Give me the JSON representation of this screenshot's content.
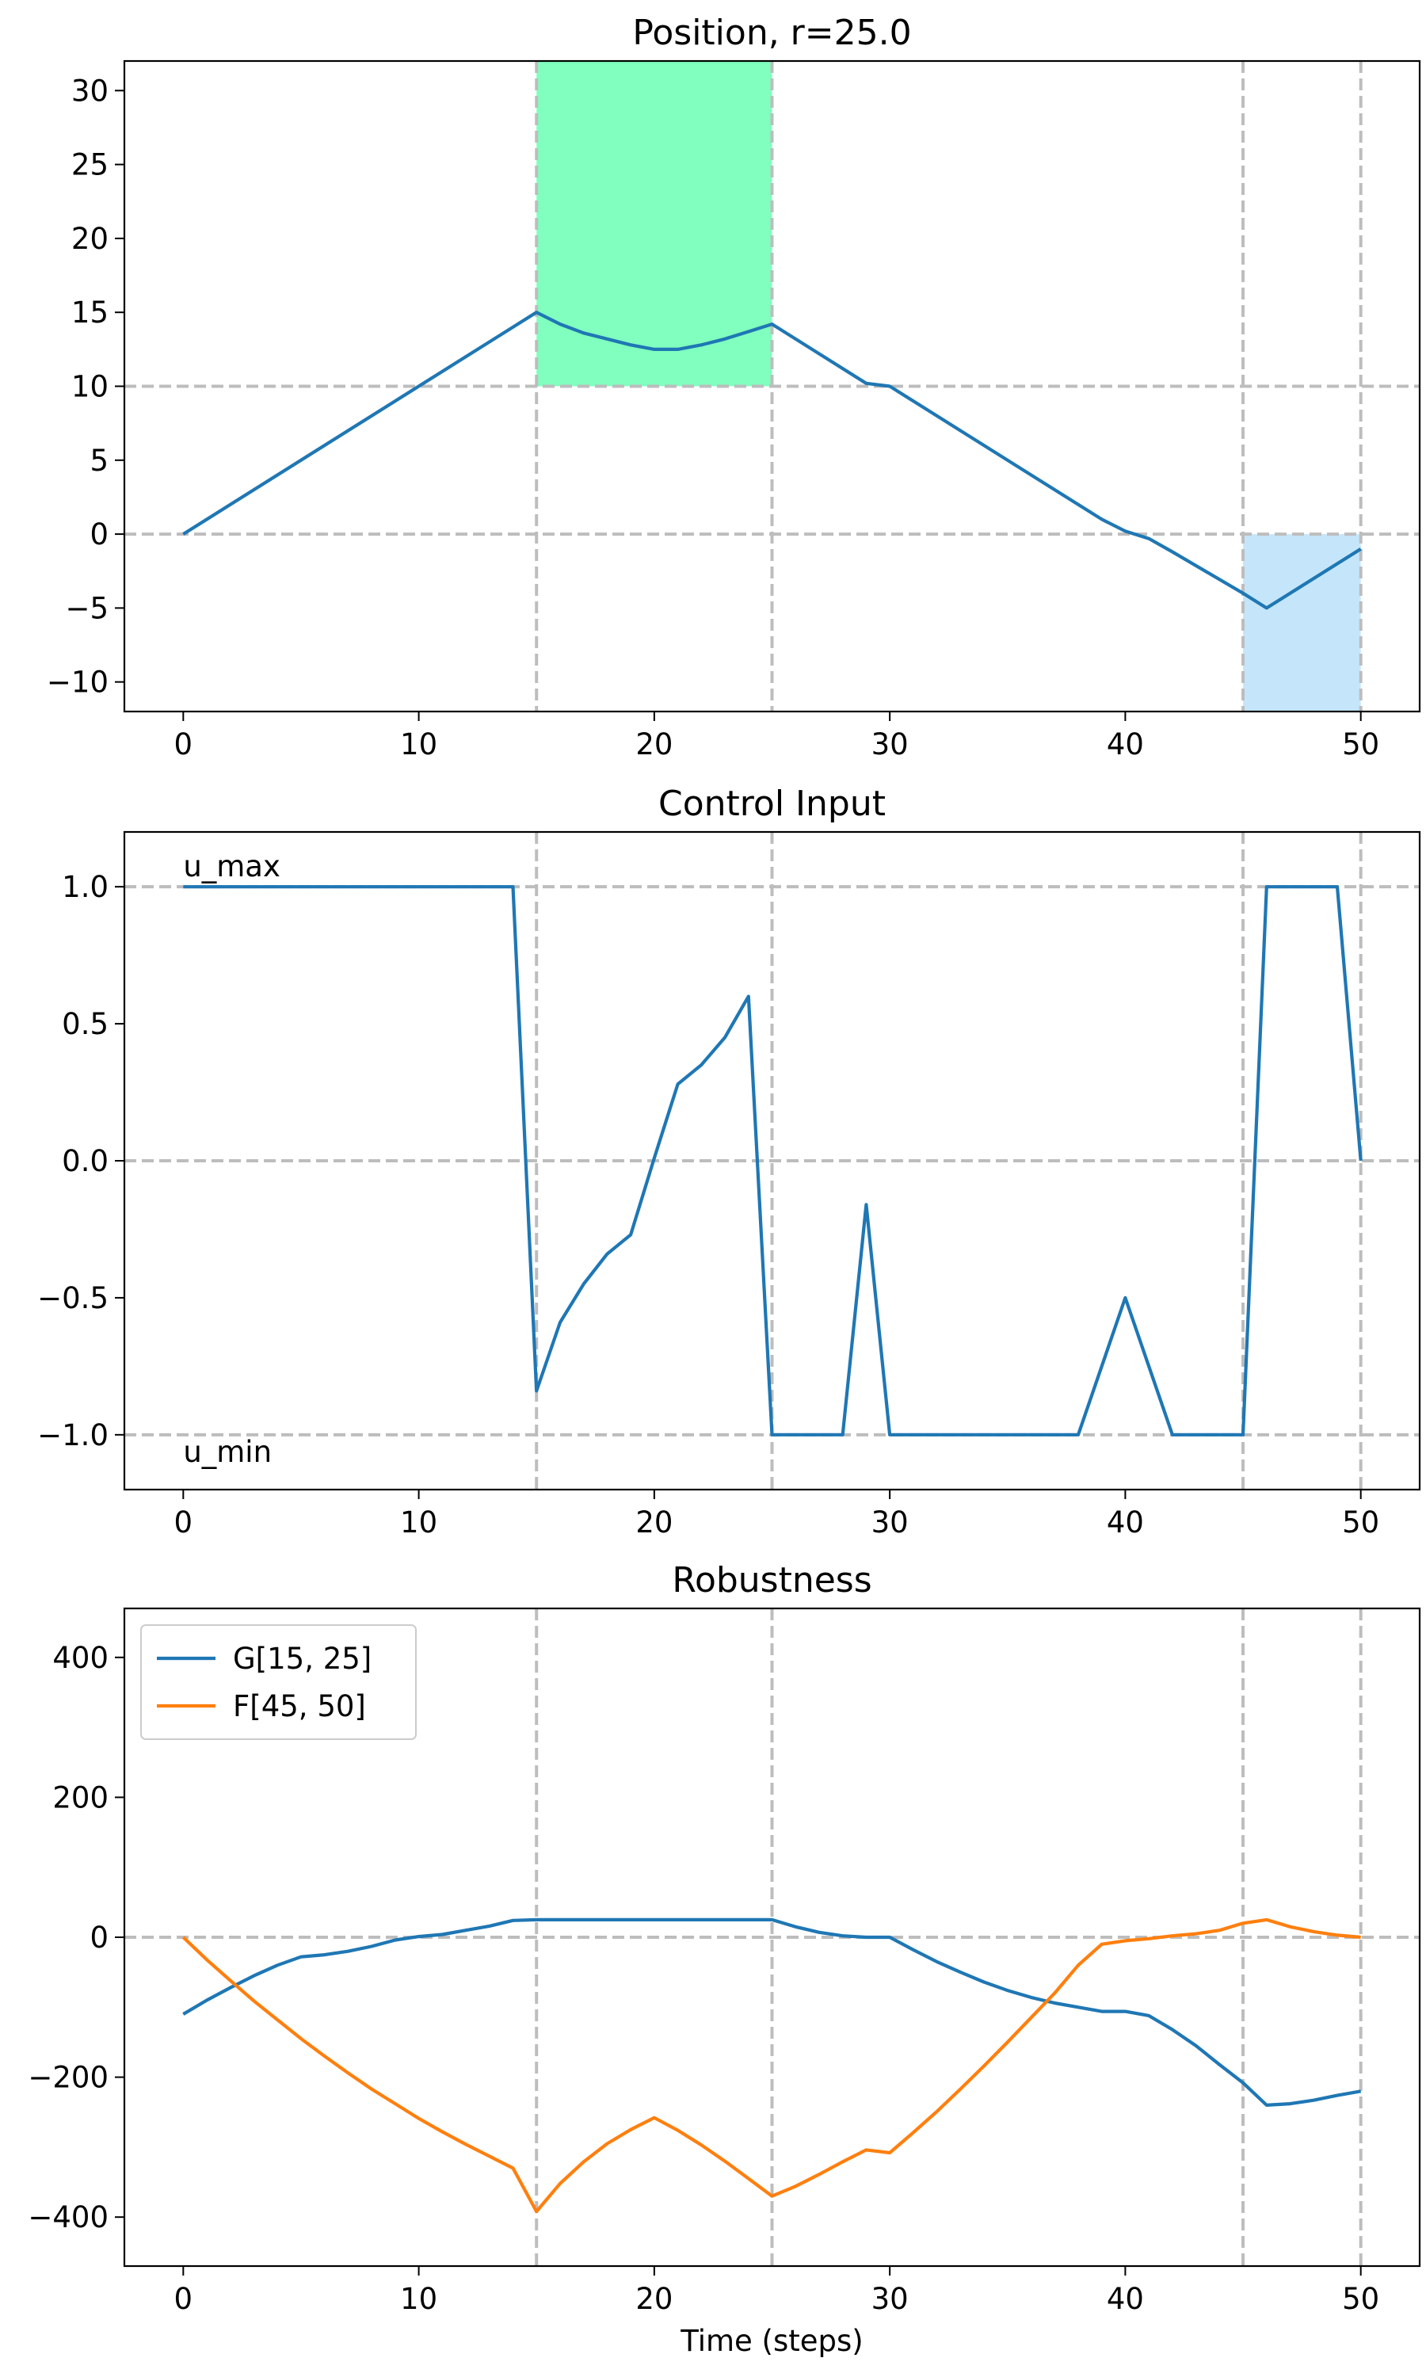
{
  "chart_data": [
    {
      "type": "line",
      "title": "Position, r=25.0",
      "xlabel": "",
      "ylabel": "",
      "xlim": [
        -2.5,
        52.5
      ],
      "ylim": [
        -12,
        32
      ],
      "xticks": [
        0,
        10,
        20,
        30,
        40,
        50
      ],
      "xtick_labels": [
        "0",
        "10",
        "20",
        "30",
        "40",
        "50"
      ],
      "yticks": [
        -10,
        -5,
        0,
        5,
        10,
        15,
        20,
        25,
        30
      ],
      "ytick_labels": [
        "−10",
        "−5",
        "0",
        "5",
        "10",
        "15",
        "20",
        "25",
        "30"
      ],
      "grid": false,
      "reference_lines": {
        "vertical": [
          15,
          25,
          45,
          50
        ],
        "horizontal": [
          10,
          0
        ]
      },
      "shaded_regions": [
        {
          "x": [
            15,
            25
          ],
          "y": [
            10,
            32
          ],
          "color": "#80ffbf"
        },
        {
          "x": [
            45,
            50
          ],
          "y": [
            -12,
            0
          ],
          "color": "#c5e6fa"
        }
      ],
      "series": [
        {
          "color": "#1f77b4",
          "x": [
            0,
            15,
            16,
            17,
            18,
            19,
            20,
            21,
            22,
            23,
            24,
            25,
            29,
            30,
            39,
            40,
            41,
            42,
            45,
            46,
            50
          ],
          "y": [
            0,
            15,
            14.2,
            13.6,
            13.2,
            12.8,
            12.5,
            12.5,
            12.8,
            13.2,
            13.7,
            14.2,
            10.2,
            10,
            1,
            0.2,
            -0.3,
            -1.2,
            -4,
            -5,
            -1
          ]
        }
      ]
    },
    {
      "type": "line",
      "title": "Control Input",
      "xlabel": "",
      "ylabel": "",
      "xlim": [
        -2.5,
        52.5
      ],
      "ylim": [
        -1.2,
        1.2
      ],
      "xticks": [
        0,
        10,
        20,
        30,
        40,
        50
      ],
      "xtick_labels": [
        "0",
        "10",
        "20",
        "30",
        "40",
        "50"
      ],
      "yticks": [
        -1.0,
        -0.5,
        0.0,
        0.5,
        1.0
      ],
      "ytick_labels": [
        "−1.0",
        "−0.5",
        "0.0",
        "0.5",
        "1.0"
      ],
      "grid": false,
      "reference_lines": {
        "vertical": [
          15,
          25,
          45,
          50
        ],
        "horizontal": [
          1,
          0,
          -1
        ]
      },
      "annotations": [
        {
          "text": "u_max",
          "x": 0,
          "y": 1.0
        },
        {
          "text": "u_min",
          "x": 0,
          "y": -1.0
        }
      ],
      "series": [
        {
          "color": "#1f77b4",
          "x": [
            0,
            14,
            15,
            16,
            17,
            18,
            19,
            20,
            21,
            22,
            23,
            24,
            25,
            26,
            27,
            28,
            29,
            30,
            38,
            40,
            42,
            45,
            46,
            49,
            50
          ],
          "y": [
            1,
            1,
            -0.84,
            -0.59,
            -0.45,
            -0.34,
            -0.27,
            0.01,
            0.28,
            0.35,
            0.45,
            0.6,
            -1,
            -1,
            -1,
            -1,
            -0.16,
            -1,
            -1,
            -0.5,
            -1,
            -1,
            1,
            1,
            0
          ]
        }
      ]
    },
    {
      "type": "line",
      "title": "Robustness",
      "xlabel": "Time (steps)",
      "ylabel": "",
      "xlim": [
        -2.5,
        52.5
      ],
      "ylim": [
        -470,
        470
      ],
      "xticks": [
        0,
        10,
        20,
        30,
        40,
        50
      ],
      "xtick_labels": [
        "0",
        "10",
        "20",
        "30",
        "40",
        "50"
      ],
      "yticks": [
        -400,
        -200,
        0,
        200,
        400
      ],
      "ytick_labels": [
        "−400",
        "−200",
        "0",
        "200",
        "400"
      ],
      "grid": false,
      "legend": "top-left",
      "reference_lines": {
        "vertical": [
          15,
          25,
          45,
          50
        ],
        "horizontal": [
          0
        ]
      },
      "series": [
        {
          "name": "G[15, 25]",
          "color": "#1f77b4",
          "x": [
            0,
            1,
            2,
            3,
            4,
            5,
            6,
            7,
            8,
            9,
            10,
            11,
            12,
            13,
            14,
            15,
            25,
            26,
            27,
            28,
            29,
            30,
            31,
            32,
            33,
            34,
            35,
            36,
            37,
            38,
            39,
            40,
            41,
            42,
            43,
            44,
            45,
            46,
            47,
            48,
            49,
            50
          ],
          "y": [
            -110,
            -90,
            -72,
            -55,
            -40,
            -28,
            -25,
            -20,
            -13,
            -4,
            1,
            4,
            10,
            16,
            24,
            25,
            25,
            15,
            7,
            2,
            0,
            0,
            -18,
            -35,
            -50,
            -64,
            -76,
            -86,
            -94,
            -100,
            -106,
            -106,
            -112,
            -132,
            -155,
            -182,
            -208,
            -240,
            -238,
            -233,
            -226,
            -220
          ]
        },
        {
          "name": "F[45, 50]",
          "color": "#ff7f0e",
          "x": [
            0,
            1,
            2,
            3,
            4,
            5,
            6,
            7,
            8,
            9,
            10,
            11,
            12,
            13,
            14,
            15,
            16,
            17,
            18,
            19,
            20,
            21,
            22,
            23,
            24,
            25,
            26,
            27,
            28,
            29,
            30,
            31,
            32,
            33,
            34,
            35,
            36,
            37,
            38,
            39,
            40,
            41,
            42,
            43,
            44,
            45,
            46,
            47,
            48,
            49,
            50
          ],
          "y": [
            0,
            -32,
            -62,
            -91,
            -118,
            -145,
            -170,
            -194,
            -217,
            -238,
            -259,
            -278,
            -296,
            -313,
            -330,
            -392,
            -352,
            -321,
            -295,
            -275,
            -258,
            -276,
            -297,
            -320,
            -345,
            -370,
            -356,
            -339,
            -321,
            -304,
            -308,
            -279,
            -249,
            -217,
            -184,
            -150,
            -115,
            -80,
            -40,
            -10,
            -5,
            -2,
            2,
            5,
            10,
            20,
            25,
            15,
            8,
            3,
            0
          ]
        }
      ]
    }
  ]
}
